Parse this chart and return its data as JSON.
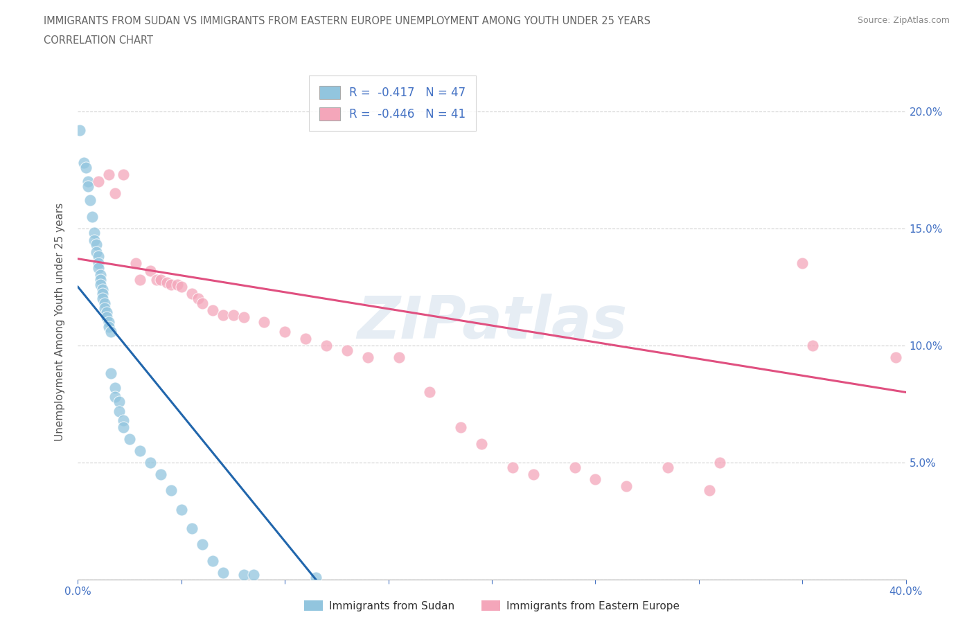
{
  "title_line1": "IMMIGRANTS FROM SUDAN VS IMMIGRANTS FROM EASTERN EUROPE UNEMPLOYMENT AMONG YOUTH UNDER 25 YEARS",
  "title_line2": "CORRELATION CHART",
  "source": "Source: ZipAtlas.com",
  "ylabel": "Unemployment Among Youth under 25 years",
  "xlim": [
    0.0,
    0.4
  ],
  "ylim": [
    0.0,
    0.22
  ],
  "xticks": [
    0.0,
    0.05,
    0.1,
    0.15,
    0.2,
    0.25,
    0.3,
    0.35,
    0.4
  ],
  "yticks": [
    0.0,
    0.05,
    0.1,
    0.15,
    0.2
  ],
  "right_ytick_labels": [
    "",
    "5.0%",
    "10.0%",
    "15.0%",
    "20.0%"
  ],
  "xtick_labels": [
    "0.0%",
    "",
    "",
    "",
    "",
    "",
    "",
    "",
    "40.0%"
  ],
  "watermark": "ZIPatlas",
  "legend_stat_labels": [
    "R =  -0.417   N = 47",
    "R =  -0.446   N = 41"
  ],
  "legend_labels": [
    "Immigrants from Sudan",
    "Immigrants from Eastern Europe"
  ],
  "color_sudan": "#92c5de",
  "color_eastern": "#f4a6ba",
  "color_sudan_line": "#2166ac",
  "color_eastern_line": "#e05080",
  "sudan_scatter": [
    [
      0.001,
      0.192
    ],
    [
      0.003,
      0.178
    ],
    [
      0.004,
      0.176
    ],
    [
      0.005,
      0.17
    ],
    [
      0.005,
      0.168
    ],
    [
      0.006,
      0.162
    ],
    [
      0.007,
      0.155
    ],
    [
      0.008,
      0.148
    ],
    [
      0.008,
      0.145
    ],
    [
      0.009,
      0.143
    ],
    [
      0.009,
      0.14
    ],
    [
      0.01,
      0.138
    ],
    [
      0.01,
      0.135
    ],
    [
      0.01,
      0.133
    ],
    [
      0.011,
      0.13
    ],
    [
      0.011,
      0.128
    ],
    [
      0.011,
      0.126
    ],
    [
      0.012,
      0.124
    ],
    [
      0.012,
      0.122
    ],
    [
      0.012,
      0.12
    ],
    [
      0.013,
      0.118
    ],
    [
      0.013,
      0.116
    ],
    [
      0.014,
      0.114
    ],
    [
      0.014,
      0.112
    ],
    [
      0.015,
      0.11
    ],
    [
      0.015,
      0.108
    ],
    [
      0.016,
      0.106
    ],
    [
      0.016,
      0.088
    ],
    [
      0.018,
      0.082
    ],
    [
      0.018,
      0.078
    ],
    [
      0.02,
      0.076
    ],
    [
      0.02,
      0.072
    ],
    [
      0.022,
      0.068
    ],
    [
      0.022,
      0.065
    ],
    [
      0.025,
      0.06
    ],
    [
      0.03,
      0.055
    ],
    [
      0.035,
      0.05
    ],
    [
      0.04,
      0.045
    ],
    [
      0.045,
      0.038
    ],
    [
      0.05,
      0.03
    ],
    [
      0.055,
      0.022
    ],
    [
      0.06,
      0.015
    ],
    [
      0.065,
      0.008
    ],
    [
      0.07,
      0.003
    ],
    [
      0.08,
      0.002
    ],
    [
      0.085,
      0.002
    ],
    [
      0.115,
      0.001
    ]
  ],
  "eastern_scatter": [
    [
      0.01,
      0.17
    ],
    [
      0.015,
      0.173
    ],
    [
      0.018,
      0.165
    ],
    [
      0.022,
      0.173
    ],
    [
      0.028,
      0.135
    ],
    [
      0.03,
      0.128
    ],
    [
      0.035,
      0.132
    ],
    [
      0.038,
      0.128
    ],
    [
      0.04,
      0.128
    ],
    [
      0.043,
      0.127
    ],
    [
      0.045,
      0.126
    ],
    [
      0.048,
      0.126
    ],
    [
      0.05,
      0.125
    ],
    [
      0.055,
      0.122
    ],
    [
      0.058,
      0.12
    ],
    [
      0.06,
      0.118
    ],
    [
      0.065,
      0.115
    ],
    [
      0.07,
      0.113
    ],
    [
      0.075,
      0.113
    ],
    [
      0.08,
      0.112
    ],
    [
      0.09,
      0.11
    ],
    [
      0.1,
      0.106
    ],
    [
      0.11,
      0.103
    ],
    [
      0.12,
      0.1
    ],
    [
      0.13,
      0.098
    ],
    [
      0.14,
      0.095
    ],
    [
      0.155,
      0.095
    ],
    [
      0.17,
      0.08
    ],
    [
      0.185,
      0.065
    ],
    [
      0.195,
      0.058
    ],
    [
      0.21,
      0.048
    ],
    [
      0.22,
      0.045
    ],
    [
      0.24,
      0.048
    ],
    [
      0.25,
      0.043
    ],
    [
      0.265,
      0.04
    ],
    [
      0.285,
      0.048
    ],
    [
      0.305,
      0.038
    ],
    [
      0.31,
      0.05
    ],
    [
      0.35,
      0.135
    ],
    [
      0.355,
      0.1
    ],
    [
      0.395,
      0.095
    ]
  ],
  "sudan_trend_x": [
    0.0,
    0.115
  ],
  "sudan_trend_y": [
    0.125,
    0.0
  ],
  "eastern_trend_x": [
    0.0,
    0.4
  ],
  "eastern_trend_y": [
    0.137,
    0.08
  ],
  "bg_color": "#ffffff",
  "grid_color": "#cccccc",
  "axis_color": "#4472c4",
  "title_color": "#666666",
  "source_color": "#888888"
}
